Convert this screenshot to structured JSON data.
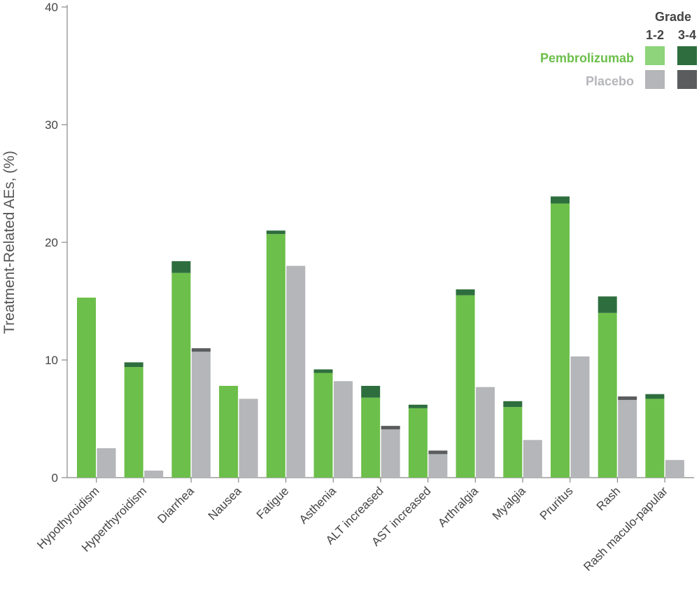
{
  "chart_data": {
    "type": "bar",
    "title": "",
    "xlabel": "",
    "ylabel": "Treatment-Related AEs, (%)",
    "ylim": [
      0,
      40
    ],
    "yticks": [
      0,
      10,
      20,
      30,
      40
    ],
    "grid": false,
    "stacked": true,
    "categories": [
      "Hypothyroidism",
      "Hyperthyroidism",
      "Diarrhea",
      "Nausea",
      "Fatigue",
      "Asthenia",
      "ALT increased",
      "AST increased",
      "Arthralgia",
      "Myalgia",
      "Pruritus",
      "Rash",
      "Rash maculo-papular"
    ],
    "groups": [
      {
        "name": "Pembrolizumab",
        "color_grade12": "#6cbf4a",
        "color_grade34": "#2e6e3e",
        "grade12": [
          15.3,
          9.4,
          17.4,
          7.8,
          20.7,
          8.9,
          6.8,
          5.9,
          15.5,
          6.0,
          23.3,
          14.0,
          6.7
        ],
        "grade34": [
          0.0,
          0.4,
          1.0,
          0.0,
          0.3,
          0.3,
          1.0,
          0.3,
          0.5,
          0.5,
          0.6,
          1.4,
          0.4
        ]
      },
      {
        "name": "Placebo",
        "color_grade12": "#b5b6ba",
        "color_grade34": "#5b5c5e",
        "grade12": [
          2.5,
          0.6,
          10.7,
          6.7,
          18.0,
          8.2,
          4.1,
          2.0,
          7.7,
          3.2,
          10.3,
          6.6,
          1.5
        ],
        "grade34": [
          0.0,
          0.0,
          0.3,
          0.0,
          0.0,
          0.0,
          0.3,
          0.3,
          0.0,
          0.0,
          0.0,
          0.3,
          0.0
        ]
      }
    ],
    "legend": {
      "title": "Grade",
      "columns": [
        "1-2",
        "3-4"
      ],
      "placement": "top-right",
      "pembro_color_grade12_legend": "#8dd47a",
      "pembro_text_color": "#6cbf4a",
      "placebo_text_color": "#b5b6ba"
    }
  }
}
